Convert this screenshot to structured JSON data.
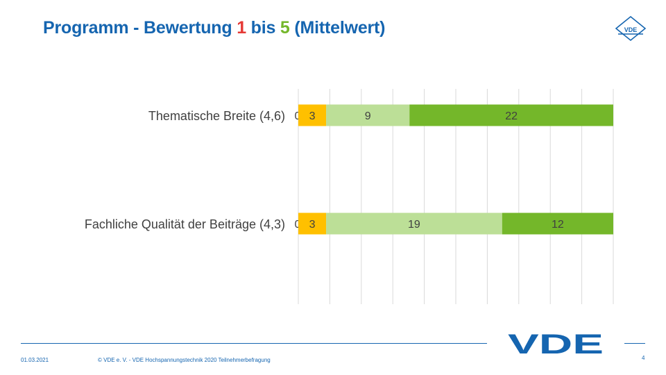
{
  "header": {
    "title_prefix": "Programm - Bewertung ",
    "title_num1": "1",
    "title_mid": " bis ",
    "title_num2": "5",
    "title_suffix": " (Mittelwert)",
    "logo_small_text": "VDE"
  },
  "chart_data": {
    "type": "bar",
    "orientation": "horizontal",
    "stacked": true,
    "categories": [
      "Thematische Breite (4,6)",
      "Fachliche Qualität der Beiträge (4,3)"
    ],
    "series": [
      {
        "values": [
          0,
          0
        ],
        "color": "#f4a623"
      },
      {
        "values": [
          3,
          3
        ],
        "color": "#ffc000"
      },
      {
        "values": [
          9,
          19
        ],
        "color": "#bcdf97"
      },
      {
        "values": [
          22,
          12
        ],
        "color": "#74b72a"
      }
    ],
    "xlim": [
      0,
      34
    ],
    "grid": true,
    "legend": "none"
  },
  "footer": {
    "date": "01.03.2021",
    "copyright": "© VDE e. V. - VDE Hochspannungstechnik 2020 Teilnehmerbefragung",
    "page_number": "4",
    "logo_text": "VDE"
  },
  "colors": {
    "brand_blue": "#1565b0",
    "red": "#e53935",
    "green": "#74b72a"
  }
}
